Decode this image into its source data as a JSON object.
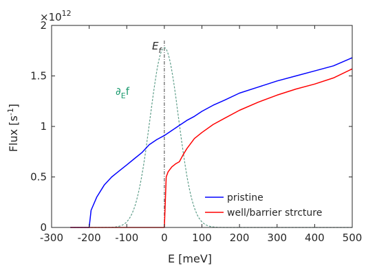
{
  "chart_data": {
    "type": "line",
    "xlabel": "E [meV]",
    "ylabel_main": "Flux [s",
    "ylabel_sup": "-1",
    "ylabel_close": "]",
    "y_multiplier_base": "×10",
    "y_multiplier_exp": "12",
    "xlim": [
      -300,
      500
    ],
    "ylim": [
      0,
      2
    ],
    "xticks": [
      -300,
      -200,
      -100,
      0,
      100,
      200,
      300,
      400,
      500
    ],
    "xtick_labels": [
      "-300",
      "-200",
      "-100",
      "0",
      "100",
      "200",
      "300",
      "400",
      "500"
    ],
    "yticks": [
      0,
      0.5,
      1,
      1.5,
      2
    ],
    "ytick_labels": [
      "0",
      "0.5",
      "1",
      "1.5",
      "2"
    ],
    "grid": false,
    "legend_position": "bottom-right",
    "annotations": {
      "ef_main": "E",
      "ef_sub": "f",
      "df_prefix": "∂",
      "df_sub": "E",
      "df_suffix": "f",
      "df_color": "#1a9a6e"
    },
    "fermi_level": 0,
    "series": [
      {
        "name": "pristine",
        "color": "#0000ff",
        "x": [
          -250,
          -200,
          -195,
          -180,
          -160,
          -140,
          -120,
          -100,
          -80,
          -60,
          -40,
          -20,
          0,
          20,
          40,
          60,
          80,
          100,
          130,
          160,
          200,
          250,
          300,
          350,
          400,
          450,
          500
        ],
        "y": [
          0,
          0,
          0.17,
          0.3,
          0.42,
          0.5,
          0.56,
          0.62,
          0.68,
          0.74,
          0.82,
          0.87,
          0.91,
          0.96,
          1.01,
          1.06,
          1.1,
          1.15,
          1.21,
          1.26,
          1.33,
          1.39,
          1.45,
          1.5,
          1.55,
          1.6,
          1.68
        ]
      },
      {
        "name": "well/barrier strcture",
        "color": "#ff0000",
        "x": [
          -250,
          0,
          5,
          10,
          20,
          30,
          40,
          50,
          60,
          80,
          100,
          130,
          160,
          200,
          250,
          300,
          350,
          400,
          450,
          500
        ],
        "y": [
          0,
          0,
          0.5,
          0.55,
          0.6,
          0.63,
          0.65,
          0.72,
          0.78,
          0.88,
          0.94,
          1.02,
          1.08,
          1.16,
          1.24,
          1.31,
          1.37,
          1.42,
          1.48,
          1.57
        ]
      },
      {
        "color": "#5f9e8a",
        "style": "dashed",
        "gaussian": {
          "center": 0,
          "peak": 1.78,
          "sigma": 38
        },
        "x_range": [
          -250,
          500
        ]
      }
    ]
  }
}
